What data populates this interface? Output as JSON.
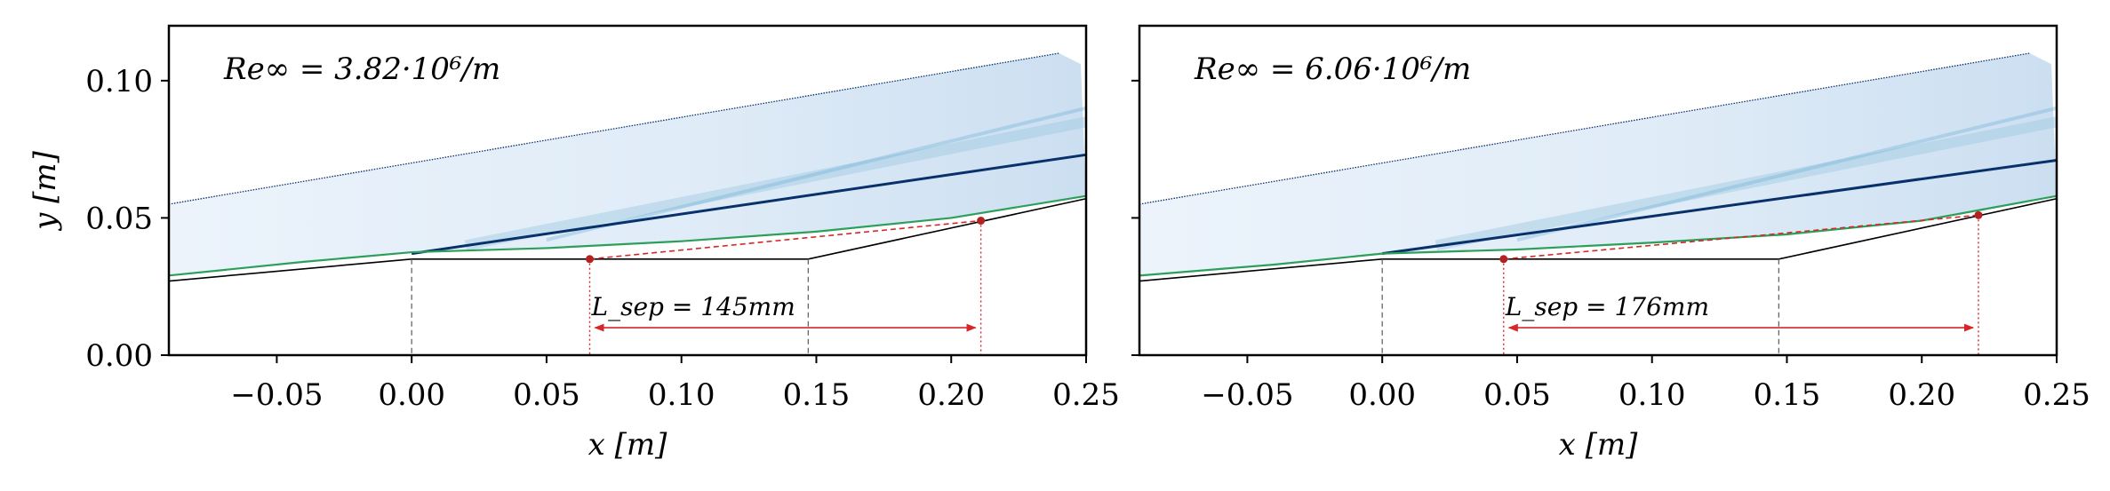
{
  "chart_data": [
    {
      "type": "line",
      "title": "",
      "annotation": "Re∞ = 3.82·10⁶/m",
      "xlabel": "x [m]",
      "ylabel": "y [m]",
      "xlim": [
        -0.09,
        0.25
      ],
      "ylim": [
        0.0,
        0.12
      ],
      "x_ticks": [
        -0.05,
        0.0,
        0.05,
        0.1,
        0.15,
        0.2,
        0.25
      ],
      "x_tick_labels": [
        "−0.05",
        "0.00",
        "0.05",
        "0.10",
        "0.15",
        "0.20",
        "0.25"
      ],
      "y_ticks": [
        0.0,
        0.05,
        0.1
      ],
      "y_tick_labels": [
        "0.00",
        "0.05",
        "0.10"
      ],
      "series": [
        {
          "name": "wall",
          "color": "#000000",
          "x": [
            -0.09,
            0.0,
            0.147,
            0.25
          ],
          "y": [
            0.027,
            0.035,
            0.035,
            0.057
          ]
        },
        {
          "name": "boundary-layer edge",
          "color": "#2ca05a",
          "x": [
            -0.09,
            -0.04,
            0.0,
            0.05,
            0.1,
            0.15,
            0.2,
            0.25
          ],
          "y": [
            0.029,
            0.034,
            0.0375,
            0.039,
            0.0415,
            0.045,
            0.05,
            0.058
          ]
        },
        {
          "name": "separation line",
          "color": "#d62728",
          "x": [
            0.066,
            0.211
          ],
          "y": [
            0.035,
            0.049
          ]
        },
        {
          "name": "leading shock",
          "color": "#08306b",
          "x": [
            -0.09,
            0.24
          ],
          "y": [
            0.055,
            0.11
          ]
        },
        {
          "name": "ramp shock",
          "color": "#08306b",
          "x": [
            0.0,
            0.25
          ],
          "y": [
            0.037,
            0.073
          ]
        }
      ],
      "separation": {
        "start": 0.066,
        "end": 0.211,
        "label": "L_sep = 145mm"
      },
      "dashed_markers_x": [
        0.0,
        0.147
      ]
    },
    {
      "type": "line",
      "title": "",
      "annotation": "Re∞ = 6.06·10⁶/m",
      "xlabel": "x [m]",
      "ylabel": "",
      "xlim": [
        -0.09,
        0.25
      ],
      "ylim": [
        0.0,
        0.12
      ],
      "x_ticks": [
        -0.05,
        0.0,
        0.05,
        0.1,
        0.15,
        0.2,
        0.25
      ],
      "x_tick_labels": [
        "−0.05",
        "0.00",
        "0.05",
        "0.10",
        "0.15",
        "0.20",
        "0.25"
      ],
      "y_ticks": [
        0.0,
        0.05,
        0.1
      ],
      "y_tick_labels": [
        "",
        "",
        ""
      ],
      "series": [
        {
          "name": "wall",
          "color": "#000000",
          "x": [
            -0.09,
            0.0,
            0.147,
            0.25
          ],
          "y": [
            0.027,
            0.035,
            0.035,
            0.057
          ]
        },
        {
          "name": "boundary-layer edge",
          "color": "#2ca05a",
          "x": [
            -0.09,
            -0.04,
            0.0,
            0.05,
            0.1,
            0.15,
            0.2,
            0.25
          ],
          "y": [
            0.029,
            0.033,
            0.037,
            0.0385,
            0.041,
            0.044,
            0.049,
            0.058
          ]
        },
        {
          "name": "separation line",
          "color": "#d62728",
          "x": [
            0.045,
            0.221
          ],
          "y": [
            0.035,
            0.051
          ]
        },
        {
          "name": "leading shock",
          "color": "#08306b",
          "x": [
            -0.09,
            0.24
          ],
          "y": [
            0.055,
            0.11
          ]
        },
        {
          "name": "ramp shock",
          "color": "#08306b",
          "x": [
            0.0,
            0.25
          ],
          "y": [
            0.037,
            0.071
          ]
        }
      ],
      "separation": {
        "start": 0.045,
        "end": 0.221,
        "label": "L_sep = 176mm"
      },
      "dashed_markers_x": [
        0.0,
        0.147
      ]
    }
  ],
  "colors": {
    "wall": "#000000",
    "edge": "#2ca05a",
    "separation": "#d62728",
    "shock": "#08306b",
    "field_light": "#e3eef9"
  }
}
